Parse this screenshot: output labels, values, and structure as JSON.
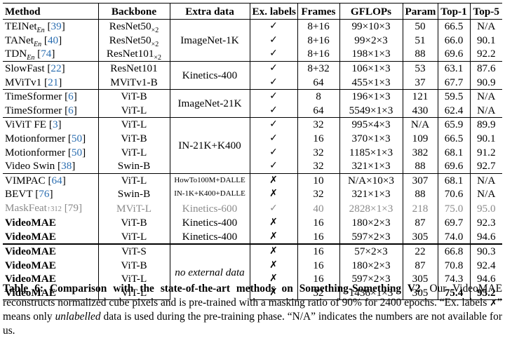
{
  "headers": [
    "Method",
    "Backbone",
    "Extra data",
    "Ex. labels",
    "Frames",
    "GFLOPs",
    "Param",
    "Top-1",
    "Top-5"
  ],
  "marks": {
    "check": "✓",
    "cross": "✗"
  },
  "groups": [
    {
      "extra_data": "ImageNet-1K",
      "rows": [
        {
          "method": "TEINet",
          "sub": "En",
          "cite": "39",
          "backbone": "ResNet50",
          "backbone_sub": "×2",
          "label": "check",
          "frames": "8+16",
          "gflops": "99×10×3",
          "param": "50",
          "top1": "66.5",
          "top5": "N/A"
        },
        {
          "method": "TANet",
          "sub": "En",
          "cite": "40",
          "backbone": "ResNet50",
          "backbone_sub": "×2",
          "label": "check",
          "frames": "8+16",
          "gflops": "99×2×3",
          "param": "51",
          "top1": "66.0",
          "top5": "90.1"
        },
        {
          "method": "TDN",
          "sub": "En",
          "cite": "74",
          "backbone": "ResNet101",
          "backbone_sub": "×2",
          "label": "check",
          "frames": "8+16",
          "gflops": "198×1×3",
          "param": "88",
          "top1": "69.6",
          "top5": "92.2"
        }
      ]
    },
    {
      "extra_data": "Kinetics-400",
      "rows": [
        {
          "method": "SlowFast",
          "cite": "22",
          "backbone": "ResNet101",
          "label": "check",
          "frames": "8+32",
          "gflops": "106×1×3",
          "param": "53",
          "top1": "63.1",
          "top5": "87.6"
        },
        {
          "method": "MViTv1",
          "cite": "21",
          "backbone": "MViTv1-B",
          "label": "check",
          "frames": "64",
          "gflops": "455×1×3",
          "param": "37",
          "top1": "67.7",
          "top5": "90.9"
        }
      ]
    },
    {
      "extra_data": "ImageNet-21K",
      "rows": [
        {
          "method": "TimeSformer",
          "cite": "6",
          "backbone": "ViT-B",
          "label": "check",
          "frames": "8",
          "gflops": "196×1×3",
          "param": "121",
          "top1": "59.5",
          "top5": "N/A"
        },
        {
          "method": "TimeSformer",
          "cite": "6",
          "backbone": "ViT-L",
          "label": "check",
          "frames": "64",
          "gflops": "5549×1×3",
          "param": "430",
          "top1": "62.4",
          "top5": "N/A"
        }
      ]
    },
    {
      "extra_data": "IN-21K+K400",
      "rows": [
        {
          "method": "ViViT FE",
          "cite": "3",
          "backbone": "ViT-L",
          "label": "check",
          "frames": "32",
          "gflops": "995×4×3",
          "param": "N/A",
          "top1": "65.9",
          "top5": "89.9"
        },
        {
          "method": "Motionformer",
          "cite": "50",
          "backbone": "ViT-B",
          "label": "check",
          "frames": "16",
          "gflops": "370×1×3",
          "param": "109",
          "top1": "66.5",
          "top5": "90.1"
        },
        {
          "method": "Motionformer",
          "cite": "50",
          "backbone": "ViT-L",
          "label": "check",
          "frames": "32",
          "gflops": "1185×1×3",
          "param": "382",
          "top1": "68.1",
          "top5": "91.2"
        },
        {
          "method": "Video Swin",
          "cite": "38",
          "backbone": "Swin-B",
          "label": "check",
          "frames": "32",
          "gflops": "321×1×3",
          "param": "88",
          "top1": "69.6",
          "top5": "92.7"
        }
      ]
    },
    {
      "rows": [
        {
          "method": "VIMPAC",
          "cite": "64",
          "backbone": "ViT-L",
          "extra": "HowTo100M+DALLE",
          "label": "cross",
          "frames": "10",
          "gflops": "N/A×10×3",
          "param": "307",
          "top1": "68.1",
          "top5": "N/A"
        },
        {
          "method": "BEVT",
          "cite": "76",
          "backbone": "Swin-B",
          "extra": "IN-1K+K400+DALLE",
          "label": "cross",
          "frames": "32",
          "gflops": "321×1×3",
          "param": "88",
          "top1": "70.6",
          "top5": "N/A"
        },
        {
          "method": "MaskFeat",
          "sup": "↑312",
          "cite": "79",
          "backbone": "MViT-L",
          "extra": "Kinetics-600",
          "label": "check",
          "frames": "40",
          "gflops": "2828×1×3",
          "param": "218",
          "top1": "75.0",
          "top5": "95.0",
          "grey": true
        },
        {
          "method": "VideoMAE",
          "backbone": "ViT-B",
          "extra": "Kinetics-400",
          "label": "cross",
          "frames": "16",
          "gflops": "180×2×3",
          "param": "87",
          "top1": "69.7",
          "top5": "92.3",
          "bold": true
        },
        {
          "method": "VideoMAE",
          "backbone": "ViT-L",
          "extra": "Kinetics-400",
          "label": "cross",
          "frames": "16",
          "gflops": "597×2×3",
          "param": "305",
          "top1": "74.0",
          "top5": "94.6",
          "bold": true
        }
      ]
    },
    {
      "extra_data": "no external data",
      "rows": [
        {
          "method": "VideoMAE",
          "backbone": "ViT-S",
          "label": "cross",
          "frames": "16",
          "gflops": "57×2×3",
          "param": "22",
          "top1": "66.8",
          "top5": "90.3",
          "bold": true
        },
        {
          "method": "VideoMAE",
          "backbone": "ViT-B",
          "label": "cross",
          "frames": "16",
          "gflops": "180×2×3",
          "param": "87",
          "top1": "70.8",
          "top5": "92.4",
          "bold": true
        },
        {
          "method": "VideoMAE",
          "backbone": "ViT-L",
          "label": "cross",
          "frames": "16",
          "gflops": "597×2×3",
          "param": "305",
          "top1": "74.3",
          "top5": "94.6",
          "bold": true
        },
        {
          "method": "VideoMAE",
          "backbone": "ViT-L",
          "label": "cross",
          "frames": "32",
          "gflops": "1436×1×3",
          "param": "305",
          "top1": "75.4",
          "top5": "95.2",
          "bold": true,
          "best": true
        }
      ]
    }
  ],
  "caption": {
    "label": "Table 6:",
    "title": "Comparison with the state-of-the-art methods on Something-Something V2",
    "t1": ". Our VideoMAE reconstructs normalized cube pixels and is pre-trained with a masking ratio of 90% for 2400 epochs. “Ex. labels",
    "xmark": "✗",
    "t2": "” means only",
    "em": "unlabelled",
    "t3": "data is used during the pre-training phase. “N/A” indicates the numbers are not available for us."
  }
}
